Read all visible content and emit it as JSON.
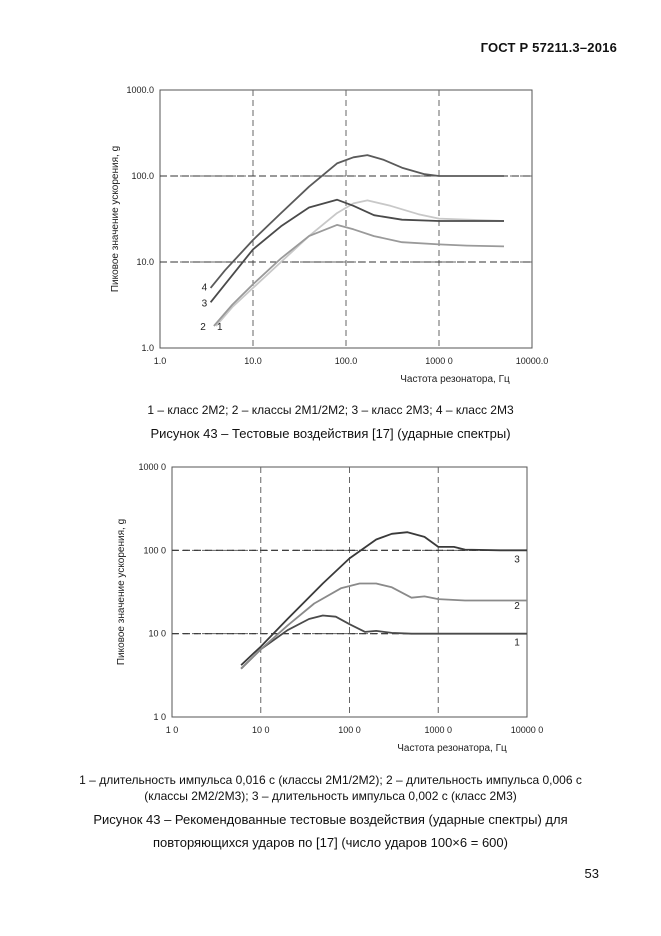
{
  "header": {
    "doc_number": "ГОСТ Р 57211.3–2016"
  },
  "page_number": "53",
  "figure1": {
    "legend_caption": "1 – класс 2М2; 2 – классы 2М1/2М2; 3 – класс 2М3; 4 – класс 2М3",
    "caption": "Рисунок 43 – Тестовые воздействия [17] (ударные спектры)"
  },
  "figure2": {
    "legend_caption_line1": "1 – длительность импульса 0,016 с (классы 2М1/2М2); 2 – длительность импульса 0,006 с",
    "legend_caption_line2": "(классы 2М2/2М3); 3 – длительность импульса 0,002 с (класс 2М3)",
    "caption_line1": "Рисунок 43 – Рекомендованные тестовые воздействия (ударные спектры) для",
    "caption_line2": "повторяющихся ударов по [17] (число ударов 100×6 = 600)"
  },
  "chart_data": [
    {
      "type": "line",
      "xscale": "log",
      "yscale": "log",
      "xlim": [
        1,
        10000
      ],
      "ylim": [
        1,
        1000
      ],
      "xticks": [
        1,
        10,
        100,
        1000,
        10000
      ],
      "xtick_labels": [
        "1.0",
        "10.0",
        "100.0",
        "1000 0",
        "10000.0"
      ],
      "yticks": [
        1,
        10,
        100,
        1000
      ],
      "ytick_labels": [
        "1.0",
        "10.0",
        "100.0",
        "1000.0"
      ],
      "xlabel": "Частота резонатора, Гц",
      "ylabel": "Пиковое значение ускорения, g",
      "grid": "dashed",
      "series": [
        {
          "name": "1",
          "color": "#c8c8c8",
          "x": [
            4,
            6,
            10,
            20,
            40,
            80,
            120,
            170,
            300,
            600,
            1000,
            2000,
            5000
          ],
          "y": [
            1.8,
            3,
            5,
            10,
            20,
            37,
            48,
            52,
            45,
            36,
            32,
            31,
            30
          ]
        },
        {
          "name": "2",
          "color": "#9a9a9a",
          "x": [
            3.8,
            6,
            10,
            20,
            40,
            80,
            120,
            200,
            400,
            1000,
            2000,
            5000
          ],
          "y": [
            1.8,
            3.2,
            5.5,
            11,
            20,
            27,
            24,
            20,
            17,
            16,
            15.5,
            15.2
          ]
        },
        {
          "name": "3",
          "color": "#4a4a4a",
          "x": [
            3.5,
            5,
            10,
            20,
            40,
            80,
            120,
            200,
            400,
            1000,
            2000,
            5000
          ],
          "y": [
            3.4,
            5.5,
            14,
            26,
            43,
            53,
            45,
            35,
            31,
            30,
            30,
            30
          ]
        },
        {
          "name": "4",
          "color": "#5a5a5a",
          "x": [
            3.5,
            5,
            10,
            20,
            40,
            80,
            120,
            170,
            250,
            400,
            700,
            1000,
            2000,
            5000
          ],
          "y": [
            5,
            8,
            18,
            37,
            75,
            140,
            165,
            175,
            155,
            125,
            105,
            100,
            100,
            100
          ]
        }
      ],
      "line_labels": [
        {
          "text": "4",
          "x": 3.0,
          "y": 5.2
        },
        {
          "text": "3",
          "x": 3.0,
          "y": 3.4
        },
        {
          "text": "2",
          "x": 2.9,
          "y": 1.8
        },
        {
          "text": "1",
          "x": 4.4,
          "y": 1.8
        }
      ],
      "reference_lines": [
        100,
        10
      ]
    },
    {
      "type": "line",
      "xscale": "log",
      "yscale": "log",
      "xlim": [
        1,
        10000
      ],
      "ylim": [
        1,
        1000
      ],
      "xticks": [
        1,
        10,
        100,
        1000,
        10000
      ],
      "xtick_labels": [
        "1 0",
        "10 0",
        "100 0",
        "1000 0",
        "10000 0"
      ],
      "yticks": [
        1,
        10,
        100,
        1000
      ],
      "ytick_labels": [
        "1 0",
        "10 0",
        "100 0",
        "1000 0"
      ],
      "xlabel": "Частота резонатора, Гц",
      "ylabel": "Пиковое значение ускорения, g",
      "grid": "dashed",
      "series": [
        {
          "name": "1",
          "color": "#4a4a4a",
          "x": [
            6,
            10,
            20,
            35,
            50,
            70,
            100,
            150,
            200,
            300,
            500,
            1000,
            3000,
            10000
          ],
          "y": [
            3.8,
            6.5,
            11,
            15,
            16.5,
            16,
            13,
            10.5,
            10.8,
            10.2,
            10,
            10,
            10,
            10
          ]
        },
        {
          "name": "2",
          "color": "#8a8a8a",
          "x": [
            6,
            10,
            20,
            40,
            80,
            130,
            200,
            300,
            500,
            700,
            1000,
            2000,
            5000,
            10000
          ],
          "y": [
            3.8,
            6.5,
            12.5,
            23,
            35,
            40,
            40,
            36,
            27,
            28,
            26,
            25,
            25,
            25
          ]
        },
        {
          "name": "3",
          "color": "#3a3a3a",
          "x": [
            6,
            10,
            20,
            50,
            100,
            200,
            300,
            450,
            700,
            1000,
            1500,
            2000,
            5000,
            10000
          ],
          "y": [
            4.2,
            7,
            15,
            40,
            80,
            135,
            158,
            165,
            145,
            110,
            110,
            102,
            100,
            100
          ]
        }
      ],
      "line_labels": [
        {
          "text": "3",
          "x": 10000,
          "y": 80
        },
        {
          "text": "2",
          "x": 10000,
          "y": 22
        },
        {
          "text": "1",
          "x": 10000,
          "y": 8
        }
      ],
      "reference_lines": [
        100,
        10
      ]
    }
  ]
}
